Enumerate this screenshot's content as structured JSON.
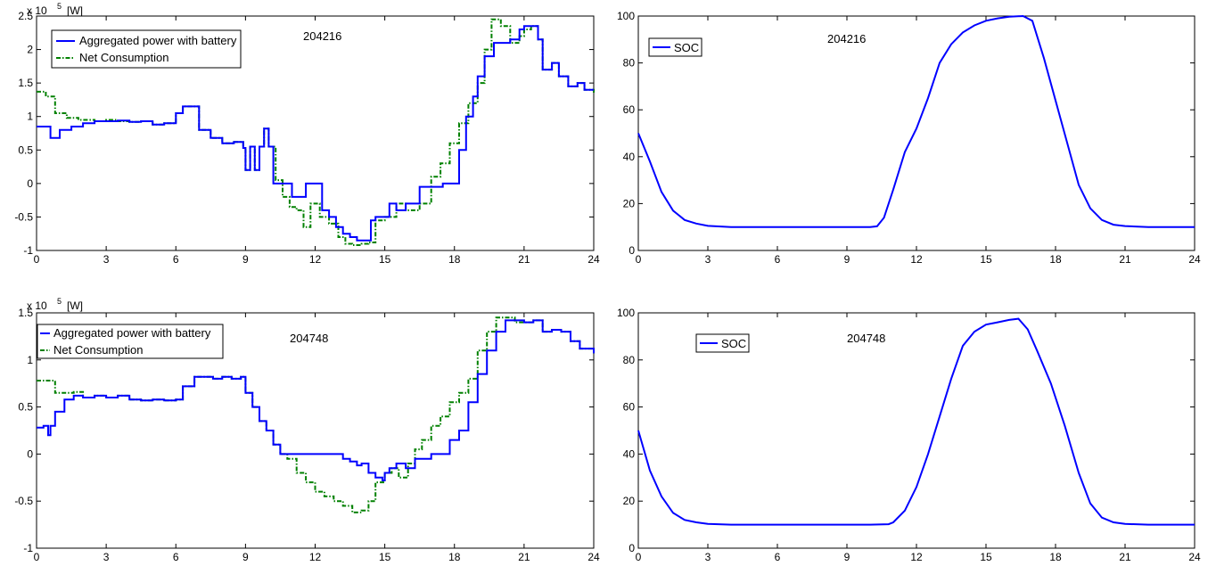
{
  "chart_data": [
    {
      "type": "line",
      "title": "204216",
      "unit_label": "[W]",
      "exponent_label": "x 10",
      "exponent_power": "5",
      "xlim": [
        0,
        24
      ],
      "ylim": [
        -1,
        2.5
      ],
      "xticks": [
        "0",
        "3",
        "6",
        "9",
        "12",
        "15",
        "18",
        "21",
        "24"
      ],
      "yticks": [
        "-1",
        "-0.5",
        "0",
        "0.5",
        "1",
        "1.5",
        "2",
        "2.5"
      ],
      "colors": {
        "power": "#0000ff",
        "net": "#008000"
      },
      "legend_placement": "top-left",
      "series": [
        {
          "name": "Aggregated power with battery",
          "style": "solid",
          "x": [
            0,
            0.5,
            0.6,
            1,
            1.5,
            2,
            2.5,
            3,
            3.5,
            4,
            4.5,
            5,
            5.5,
            6,
            6.3,
            6.7,
            7,
            7.5,
            8,
            8.5,
            8.9,
            9,
            9.2,
            9.4,
            9.6,
            9.8,
            10,
            10.2,
            10.6,
            10.8,
            11,
            11.4,
            11.6,
            12,
            12.3,
            12.6,
            12.9,
            13.2,
            13.5,
            13.8,
            14.1,
            14.4,
            14.6,
            15,
            15.2,
            15.5,
            15.9,
            16.5,
            16.9,
            17.5,
            17.8,
            18.2,
            18.5,
            18.8,
            19,
            19.3,
            19.7,
            20,
            20.4,
            20.8,
            21,
            21.3,
            21.6,
            21.8,
            22.2,
            22.5,
            22.9,
            23.3,
            23.6,
            24
          ],
          "y": [
            0.85,
            0.85,
            0.68,
            0.8,
            0.85,
            0.9,
            0.93,
            0.93,
            0.94,
            0.92,
            0.93,
            0.88,
            0.9,
            1.05,
            1.15,
            1.15,
            0.8,
            0.68,
            0.6,
            0.62,
            0.53,
            0.2,
            0.55,
            0.2,
            0.55,
            0.82,
            0.55,
            0,
            0,
            0,
            -0.2,
            -0.2,
            0,
            0,
            -0.4,
            -0.5,
            -0.65,
            -0.75,
            -0.8,
            -0.85,
            -0.85,
            -0.55,
            -0.5,
            -0.5,
            -0.3,
            -0.4,
            -0.3,
            -0.05,
            -0.05,
            0,
            0,
            0.5,
            1,
            1.3,
            1.6,
            1.9,
            2.1,
            2.1,
            2.15,
            2.3,
            2.35,
            2.35,
            2.15,
            1.7,
            1.8,
            1.6,
            1.45,
            1.5,
            1.4,
            1.4
          ]
        },
        {
          "name": "Net Consumption",
          "style": "dashdot",
          "x": [
            0,
            0.4,
            0.8,
            1.3,
            1.8,
            2.5,
            3,
            3.5,
            4,
            4.5,
            5,
            5.5,
            6,
            6.3,
            6.7,
            7,
            7.5,
            8,
            8.5,
            8.9,
            9,
            9.2,
            9.4,
            9.6,
            9.8,
            10,
            10.3,
            10.6,
            10.9,
            11.2,
            11.5,
            11.8,
            12.2,
            12.6,
            13,
            13.3,
            13.6,
            14,
            14.3,
            14.6,
            15,
            15.2,
            15.5,
            15.9,
            16.5,
            17,
            17.4,
            17.8,
            18.2,
            18.6,
            19,
            19.3,
            19.6,
            20,
            20.4,
            20.8,
            21,
            21.3,
            21.6,
            21.8,
            22.2,
            22.5,
            22.9,
            23.3,
            23.6,
            24
          ],
          "y": [
            1.37,
            1.3,
            1.05,
            0.98,
            0.95,
            0.93,
            0.95,
            0.93,
            0.92,
            0.93,
            0.88,
            0.9,
            1.05,
            1.15,
            1.15,
            0.8,
            0.68,
            0.6,
            0.62,
            0.53,
            0.2,
            0.55,
            0.2,
            0.55,
            0.82,
            0.55,
            0.05,
            -0.2,
            -0.35,
            -0.4,
            -0.65,
            -0.3,
            -0.5,
            -0.6,
            -0.8,
            -0.9,
            -0.92,
            -0.9,
            -0.88,
            -0.55,
            -0.5,
            -0.5,
            -0.3,
            -0.4,
            -0.3,
            0.1,
            0.3,
            0.6,
            0.9,
            1.2,
            1.5,
            2,
            2.45,
            2.35,
            2.1,
            2.2,
            2.3,
            2.35,
            2.15,
            1.7,
            1.8,
            1.6,
            1.45,
            1.5,
            1.4,
            1.35
          ]
        }
      ]
    },
    {
      "type": "line",
      "title": "204216",
      "xlim": [
        0,
        24
      ],
      "ylim": [
        0,
        100
      ],
      "xticks": [
        "0",
        "3",
        "6",
        "9",
        "12",
        "15",
        "18",
        "21",
        "24"
      ],
      "yticks": [
        "0",
        "20",
        "40",
        "60",
        "80",
        "100"
      ],
      "colors": {
        "soc": "#0000ff"
      },
      "legend_placement": "top-left",
      "series": [
        {
          "name": "SOC",
          "x": [
            0,
            0.5,
            1,
            1.5,
            2,
            2.5,
            3,
            4,
            6,
            8,
            10,
            10.3,
            10.6,
            11,
            11.5,
            12,
            12.5,
            13,
            13.5,
            14,
            14.5,
            15,
            15.5,
            16,
            16.6,
            17,
            17.5,
            18,
            18.5,
            19,
            19.5,
            20,
            20.5,
            21,
            22,
            24
          ],
          "y": [
            50,
            38,
            25,
            17,
            13,
            11.5,
            10.5,
            10,
            10,
            10,
            10,
            10.3,
            14,
            26,
            42,
            52,
            65,
            80,
            88,
            93,
            96,
            98,
            99,
            99.7,
            100,
            98,
            82,
            64,
            46,
            28,
            18,
            13,
            11,
            10.4,
            10,
            10
          ]
        }
      ]
    },
    {
      "type": "line",
      "title": "204748",
      "unit_label": "[W]",
      "exponent_label": "x 10",
      "exponent_power": "5",
      "xlim": [
        0,
        24
      ],
      "ylim": [
        -1,
        1.5
      ],
      "xticks": [
        "0",
        "3",
        "6",
        "9",
        "12",
        "15",
        "18",
        "21",
        "24"
      ],
      "yticks": [
        "-1",
        "-0.5",
        "0",
        "0.5",
        "1",
        "1.5"
      ],
      "colors": {
        "power": "#0000ff",
        "net": "#008000"
      },
      "legend_placement": "top-left",
      "series": [
        {
          "name": "Aggregated power with battery",
          "style": "solid",
          "x": [
            0,
            0.3,
            0.5,
            0.6,
            0.8,
            1.2,
            1.6,
            2,
            2.5,
            3,
            3.5,
            4,
            4.5,
            5,
            5.5,
            6,
            6.3,
            6.8,
            7.2,
            7.6,
            8,
            8.4,
            8.8,
            9,
            9.3,
            9.6,
            9.9,
            10.2,
            10.5,
            10.7,
            11,
            12,
            13,
            13.2,
            13.5,
            13.8,
            14,
            14.3,
            14.6,
            14.9,
            15,
            15.2,
            15.5,
            15.9,
            16.3,
            16.6,
            17,
            17.5,
            17.8,
            18.2,
            18.6,
            19,
            19.4,
            19.8,
            20.2,
            20.6,
            21,
            21.4,
            21.8,
            22.2,
            22.6,
            23,
            23.4,
            24
          ],
          "y": [
            0.28,
            0.3,
            0.2,
            0.3,
            0.45,
            0.58,
            0.62,
            0.6,
            0.62,
            0.6,
            0.62,
            0.58,
            0.57,
            0.58,
            0.57,
            0.58,
            0.72,
            0.82,
            0.82,
            0.8,
            0.82,
            0.8,
            0.82,
            0.65,
            0.5,
            0.35,
            0.25,
            0.1,
            0,
            0,
            0,
            0,
            0,
            -0.05,
            -0.08,
            -0.12,
            -0.1,
            -0.2,
            -0.25,
            -0.28,
            -0.2,
            -0.15,
            -0.1,
            -0.15,
            -0.05,
            -0.05,
            0,
            0,
            0.15,
            0.25,
            0.55,
            0.85,
            1.1,
            1.3,
            1.42,
            1.42,
            1.4,
            1.42,
            1.3,
            1.32,
            1.3,
            1.2,
            1.12,
            1.07
          ]
        },
        {
          "name": "Net Consumption",
          "style": "dashdot",
          "x": [
            0,
            0.3,
            0.8,
            1.2,
            1.6,
            2,
            2.5,
            3,
            3.5,
            4,
            4.5,
            5,
            5.5,
            6,
            6.3,
            6.8,
            7.2,
            7.6,
            8,
            8.4,
            8.8,
            9,
            9.3,
            9.6,
            9.9,
            10.2,
            10.5,
            10.8,
            11.2,
            11.6,
            12,
            12.4,
            12.8,
            13.2,
            13.6,
            14,
            14.3,
            14.6,
            15,
            15.3,
            15.6,
            16,
            16.3,
            16.6,
            17,
            17.4,
            17.8,
            18.2,
            18.6,
            19,
            19.4,
            19.8,
            20.2,
            20.6,
            21,
            21.4,
            21.8,
            22.2,
            22.6,
            23,
            23.4,
            24
          ],
          "y": [
            0.78,
            0.78,
            0.65,
            0.65,
            0.66,
            0.6,
            0.62,
            0.6,
            0.62,
            0.58,
            0.57,
            0.58,
            0.57,
            0.58,
            0.72,
            0.82,
            0.82,
            0.8,
            0.82,
            0.8,
            0.82,
            0.65,
            0.5,
            0.35,
            0.25,
            0.1,
            0,
            -0.05,
            -0.2,
            -0.3,
            -0.4,
            -0.45,
            -0.5,
            -0.55,
            -0.62,
            -0.6,
            -0.5,
            -0.3,
            -0.2,
            -0.15,
            -0.25,
            -0.1,
            0.05,
            0.15,
            0.3,
            0.4,
            0.55,
            0.65,
            0.8,
            1.1,
            1.3,
            1.45,
            1.45,
            1.4,
            1.4,
            1.42,
            1.3,
            1.32,
            1.3,
            1.2,
            1.12,
            1.07
          ]
        }
      ]
    },
    {
      "type": "line",
      "title": "204748",
      "xlim": [
        0,
        24
      ],
      "ylim": [
        0,
        100
      ],
      "xticks": [
        "0",
        "3",
        "6",
        "9",
        "12",
        "15",
        "18",
        "21",
        "24"
      ],
      "yticks": [
        "0",
        "20",
        "40",
        "60",
        "80",
        "100"
      ],
      "colors": {
        "soc": "#0000ff"
      },
      "legend_placement": "top-left",
      "series": [
        {
          "name": "SOC",
          "x": [
            0,
            0.5,
            1,
            1.5,
            2,
            2.5,
            3,
            4,
            6,
            8,
            10,
            10.8,
            11,
            11.5,
            12,
            12.5,
            13,
            13.5,
            14,
            14.5,
            15,
            15.5,
            16,
            16.4,
            16.8,
            17.2,
            17.8,
            18.4,
            19,
            19.5,
            20,
            20.5,
            21,
            22,
            24
          ],
          "y": [
            50,
            33,
            22,
            15,
            12,
            11,
            10.3,
            10,
            10,
            10,
            10,
            10.2,
            11,
            16,
            26,
            40,
            56,
            72,
            86,
            92,
            95,
            96,
            97,
            97.5,
            93,
            84,
            70,
            52,
            32,
            19,
            13,
            11,
            10.3,
            10,
            10
          ]
        }
      ]
    }
  ]
}
